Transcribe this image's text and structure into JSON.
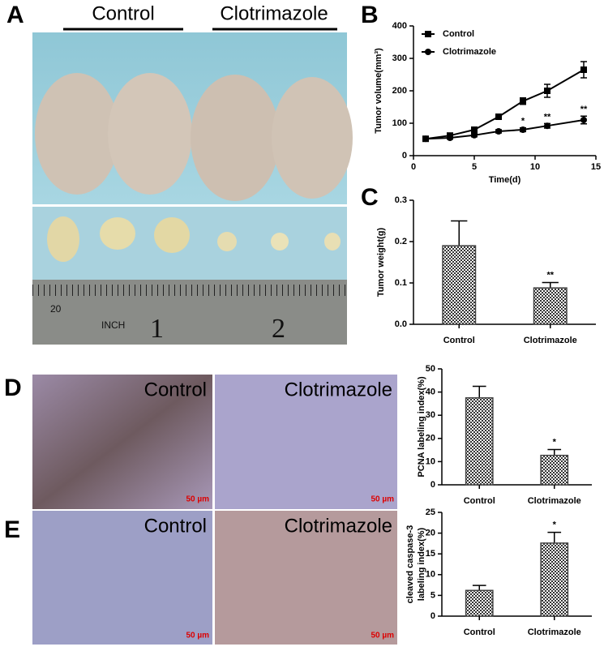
{
  "photos": [
    {
      "panel": "A",
      "labels": [
        "Control",
        "Clotrimazole"
      ],
      "ruler_labels": [
        "20",
        "INCH",
        "1",
        "2"
      ]
    },
    {
      "panel": "D",
      "labels": [
        "Control",
        "Clotrimazole"
      ],
      "scale_bars": [
        "50 µm",
        "50 µm"
      ]
    },
    {
      "panel": "E",
      "labels": [
        "Control",
        "Clotrimazole"
      ],
      "scale_bars": [
        "50 µm",
        "50 µm"
      ]
    }
  ],
  "chart_data": [
    {
      "type": "line",
      "panel": "B",
      "xlabel": "Time(d)",
      "ylabel": "Tumor volume(mm³)",
      "x": [
        1,
        3,
        5,
        7,
        9,
        11,
        14
      ],
      "series": [
        {
          "name": "Control",
          "color": "#000000",
          "marker": "square",
          "values": [
            52,
            62,
            80,
            120,
            168,
            200,
            265
          ],
          "errors": [
            5,
            5,
            7,
            8,
            10,
            20,
            25
          ]
        },
        {
          "name": "Clotrimazole",
          "color": "#000000",
          "marker": "circle",
          "values": [
            52,
            55,
            63,
            75,
            80,
            92,
            110
          ],
          "errors": [
            4,
            4,
            5,
            5,
            6,
            7,
            12
          ]
        }
      ],
      "annotations": [
        {
          "x": 9,
          "text": "*"
        },
        {
          "x": 11,
          "text": "**"
        },
        {
          "x": 14,
          "text": "**"
        }
      ],
      "xlim": [
        0,
        15
      ],
      "xticks": [
        0,
        5,
        10,
        15
      ],
      "ylim": [
        0,
        400
      ],
      "yticks": [
        0,
        100,
        200,
        300,
        400
      ],
      "legend": "top-left"
    },
    {
      "type": "bar",
      "panel": "C",
      "ylabel": "Tumor weight(g)",
      "categories": [
        "Control",
        "Clotrimazole"
      ],
      "values": [
        0.19,
        0.088
      ],
      "errors": [
        0.06,
        0.013
      ],
      "color": "#444444",
      "annotation": "**",
      "ylim": [
        0,
        0.3
      ],
      "yticks": [
        {
          "value": 0,
          "label": "0.0"
        },
        0.1,
        0.2,
        0.3
      ]
    },
    {
      "type": "bar",
      "panel": "D",
      "ylabel": "PCNA labeling index(%)",
      "categories": [
        "Control",
        "Clotrimazole"
      ],
      "values": [
        37.5,
        12.7
      ],
      "errors": [
        5,
        2.5
      ],
      "color": "#444444",
      "annotation": "*",
      "ylim": [
        0,
        50
      ],
      "yticks": [
        0,
        10,
        20,
        30,
        40,
        50
      ]
    },
    {
      "type": "bar",
      "panel": "E",
      "ylabel": [
        "cleaved caspase-3",
        "labeling index(%)"
      ],
      "categories": [
        "Control",
        "Clotrimazole"
      ],
      "values": [
        6.2,
        17.6
      ],
      "errors": [
        1.2,
        2.6
      ],
      "color": "#444444",
      "annotation": "*",
      "ylim": [
        0,
        25
      ],
      "yticks": [
        0,
        5,
        10,
        15,
        20,
        25
      ]
    }
  ]
}
